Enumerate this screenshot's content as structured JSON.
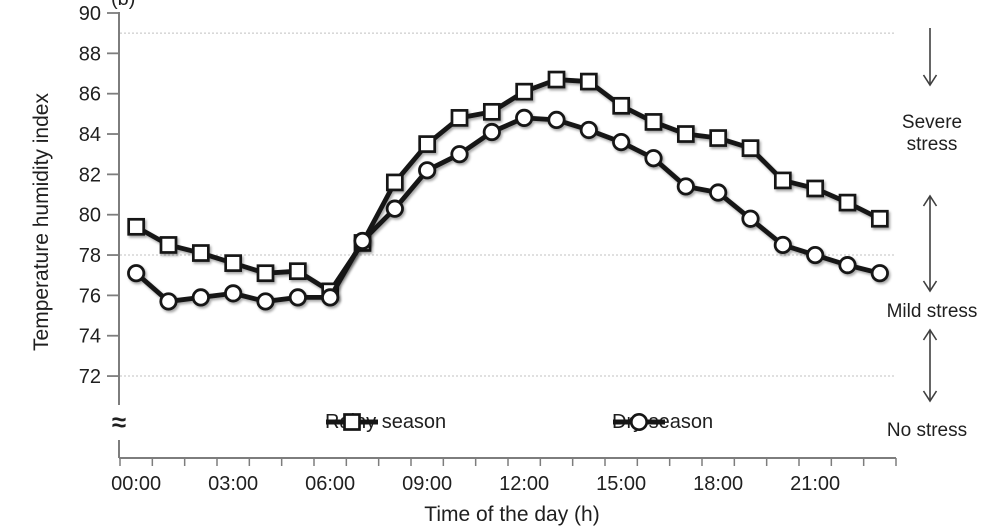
{
  "panel_label": "(b)",
  "chart_data": {
    "type": "line",
    "title": "",
    "xlabel": "Time of the day (h)",
    "ylabel": "Temperature humidity index",
    "categories": [
      "00:00",
      "01:00",
      "02:00",
      "03:00",
      "04:00",
      "05:00",
      "06:00",
      "07:00",
      "08:00",
      "09:00",
      "10:00",
      "11:00",
      "12:00",
      "13:00",
      "14:00",
      "15:00",
      "16:00",
      "17:00",
      "18:00",
      "19:00",
      "20:00",
      "21:00",
      "22:00",
      "23:00"
    ],
    "x_tick_labels_shown": [
      "00:00",
      "03:00",
      "06:00",
      "09:00",
      "12:00",
      "15:00",
      "18:00",
      "21:00"
    ],
    "label_every_hours": 3,
    "ylim": [
      72,
      90
    ],
    "y_ticks": [
      90,
      88,
      86,
      84,
      82,
      80,
      78,
      76,
      74,
      72
    ],
    "reference_lines": [
      89,
      78,
      72
    ],
    "axis_break_symbol": "≈",
    "grid": "dotted horizontal reference lines at THI thresholds",
    "legend_position": "bottom",
    "series": [
      {
        "name": "Rainy season",
        "marker": "square",
        "values": [
          79.4,
          78.5,
          78.1,
          77.6,
          77.1,
          77.2,
          76.2,
          78.6,
          81.6,
          83.5,
          84.8,
          85.1,
          86.1,
          86.7,
          86.6,
          85.4,
          84.6,
          84.0,
          83.8,
          83.3,
          81.7,
          81.3,
          80.6,
          79.8
        ]
      },
      {
        "name": "Dry season",
        "marker": "circle",
        "values": [
          77.1,
          75.7,
          75.9,
          76.1,
          75.7,
          75.9,
          75.9,
          78.7,
          80.3,
          82.2,
          83.0,
          84.1,
          84.8,
          84.7,
          84.2,
          83.6,
          82.8,
          81.4,
          81.1,
          79.8,
          78.5,
          78.0,
          77.5,
          77.1
        ]
      }
    ],
    "annotations": [
      {
        "label": "Severe stress",
        "arrow": "down"
      },
      {
        "label": "Mild stress",
        "arrow": "up-down"
      },
      {
        "label": "No stress",
        "arrow": "up-down"
      }
    ],
    "colors": {
      "series": "#161616",
      "marker_fill": "#ffffff",
      "gridline": "#c0c0c0",
      "axis": "#7d7d7d",
      "text": "#1f1f1f",
      "arrow": "#3f3f3f"
    }
  }
}
